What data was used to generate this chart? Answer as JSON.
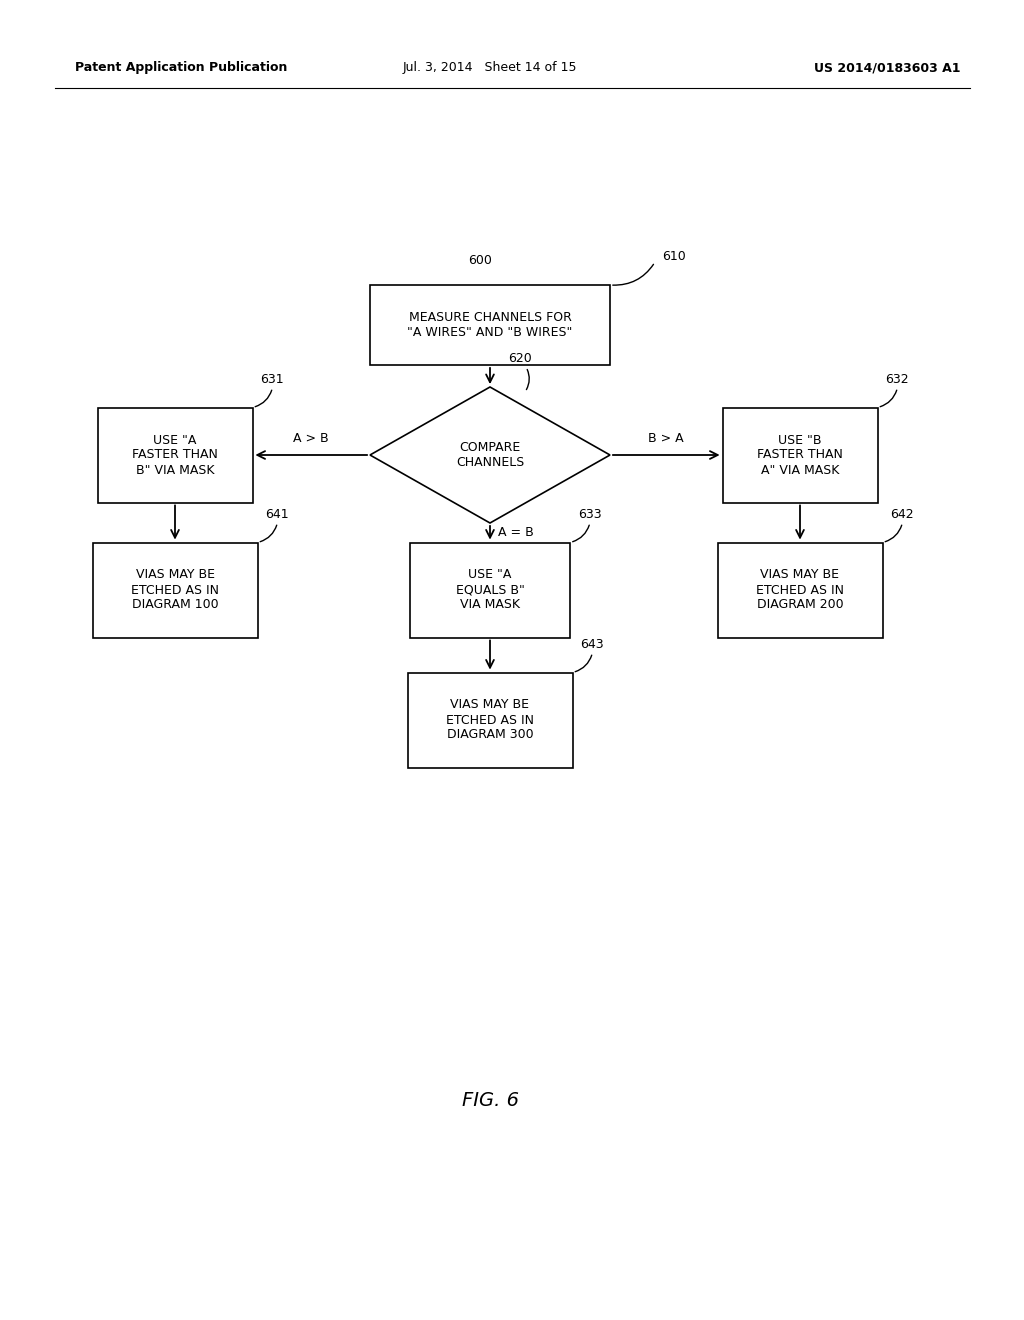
{
  "bg_color": "#ffffff",
  "header_left": "Patent Application Publication",
  "header_mid": "Jul. 3, 2014   Sheet 14 of 15",
  "header_right": "US 2014/0183603 A1",
  "fig_label": "FIG. 6",
  "node_600_label": "600",
  "node_610_label": "610",
  "node_620_label": "620",
  "node_631_label": "631",
  "node_632_label": "632",
  "node_633_label": "633",
  "node_641_label": "641",
  "node_642_label": "642",
  "node_643_label": "643",
  "box_610_text": "MEASURE CHANNELS FOR\n\"A WIRES\" AND \"B WIRES\"",
  "diamond_620_text": "COMPARE\nCHANNELS",
  "box_631_text": "USE \"A\nFASTER THAN\nB\" VIA MASK",
  "box_632_text": "USE \"B\nFASTER THAN\nA\" VIA MASK",
  "box_633_text": "USE \"A\nEQUALS B\"\nVIA MASK",
  "box_641_text": "VIAS MAY BE\nETCHED AS IN\nDIAGRAM 100",
  "box_642_text": "VIAS MAY BE\nETCHED AS IN\nDIAGRAM 200",
  "box_643_text": "VIAS MAY BE\nETCHED AS IN\nDIAGRAM 300",
  "arrow_ab_label": "A > B",
  "arrow_ba_label": "B > A",
  "arrow_eq_label": "A = B",
  "line_color": "#000000",
  "text_color": "#000000",
  "box_facecolor": "#ffffff",
  "box_edgecolor": "#000000"
}
